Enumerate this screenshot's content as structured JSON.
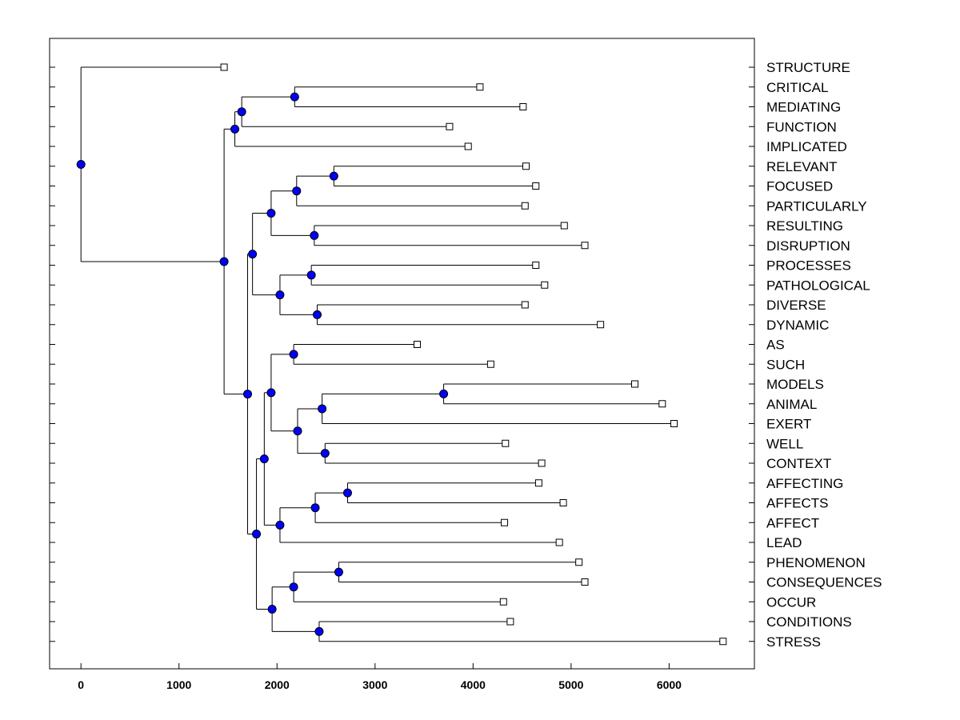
{
  "chart_data": {
    "type": "dendrogram",
    "orientation": "horizontal",
    "xlim": [
      -320,
      6870
    ],
    "xticks": [
      0,
      1000,
      2000,
      3000,
      4000,
      5000,
      6000
    ],
    "xtick_labels": [
      "0",
      "1000",
      "2000",
      "3000",
      "4000",
      "5000",
      "6000"
    ],
    "colors": {
      "merge_node": "#0000ff",
      "leaf_marker": "#ffffff",
      "line": "#000000",
      "frame": "#000000"
    },
    "leaves": [
      {
        "label": "STRUCTURE",
        "value": 1460
      },
      {
        "label": "CRITICAL",
        "value": 4070
      },
      {
        "label": "MEDIATING",
        "value": 4510
      },
      {
        "label": "FUNCTION",
        "value": 3760
      },
      {
        "label": "IMPLICATED",
        "value": 3950
      },
      {
        "label": "RELEVANT",
        "value": 4540
      },
      {
        "label": "FOCUSED",
        "value": 4640
      },
      {
        "label": "PARTICULARLY",
        "value": 4530
      },
      {
        "label": "RESULTING",
        "value": 4930
      },
      {
        "label": "DISRUPTION",
        "value": 5140
      },
      {
        "label": "PROCESSES",
        "value": 4640
      },
      {
        "label": "PATHOLOGICAL",
        "value": 4730
      },
      {
        "label": "DIVERSE",
        "value": 4530
      },
      {
        "label": "DYNAMIC",
        "value": 5300
      },
      {
        "label": "AS",
        "value": 3430
      },
      {
        "label": "SUCH",
        "value": 4180
      },
      {
        "label": "MODELS",
        "value": 5650
      },
      {
        "label": "ANIMAL",
        "value": 5930
      },
      {
        "label": "EXERT",
        "value": 6050
      },
      {
        "label": "WELL",
        "value": 4330
      },
      {
        "label": "CONTEXT",
        "value": 4700
      },
      {
        "label": "AFFECTING",
        "value": 4670
      },
      {
        "label": "AFFECTS",
        "value": 4920
      },
      {
        "label": "AFFECT",
        "value": 4320
      },
      {
        "label": "LEAD",
        "value": 4880
      },
      {
        "label": "PHENOMENON",
        "value": 5080
      },
      {
        "label": "CONSEQUENCES",
        "value": 5140
      },
      {
        "label": "OCCUR",
        "value": 4310
      },
      {
        "label": "CONDITIONS",
        "value": 4380
      },
      {
        "label": "STRESS",
        "value": 6550
      }
    ],
    "merges": [
      {
        "id": "m1",
        "value": 2180,
        "children": [
          "CRITICAL",
          "MEDIATING"
        ]
      },
      {
        "id": "m2",
        "value": 1640,
        "children": [
          "m1",
          "FUNCTION"
        ]
      },
      {
        "id": "m3",
        "value": 1570,
        "children": [
          "m2",
          "IMPLICATED"
        ]
      },
      {
        "id": "m4",
        "value": 2580,
        "children": [
          "RELEVANT",
          "FOCUSED"
        ]
      },
      {
        "id": "m5",
        "value": 2200,
        "children": [
          "m4",
          "PARTICULARLY"
        ]
      },
      {
        "id": "m6",
        "value": 2380,
        "children": [
          "RESULTING",
          "DISRUPTION"
        ]
      },
      {
        "id": "m7",
        "value": 1940,
        "children": [
          "m5",
          "m6"
        ]
      },
      {
        "id": "m8",
        "value": 2350,
        "children": [
          "PROCESSES",
          "PATHOLOGICAL"
        ]
      },
      {
        "id": "m9",
        "value": 2410,
        "children": [
          "DIVERSE",
          "DYNAMIC"
        ]
      },
      {
        "id": "m10",
        "value": 2030,
        "children": [
          "m8",
          "m9"
        ]
      },
      {
        "id": "m11",
        "value": 1750,
        "children": [
          "m7",
          "m10"
        ]
      },
      {
        "id": "m12",
        "value": 2170,
        "children": [
          "AS",
          "SUCH"
        ]
      },
      {
        "id": "m13",
        "value": 3700,
        "children": [
          "MODELS",
          "ANIMAL"
        ]
      },
      {
        "id": "m14",
        "value": 2460,
        "children": [
          "m13",
          "EXERT"
        ]
      },
      {
        "id": "m15",
        "value": 2490,
        "children": [
          "WELL",
          "CONTEXT"
        ]
      },
      {
        "id": "m16",
        "value": 2210,
        "children": [
          "m14",
          "m15"
        ]
      },
      {
        "id": "m17",
        "value": 1940,
        "children": [
          "m12",
          "m16"
        ]
      },
      {
        "id": "m18",
        "value": 2720,
        "children": [
          "AFFECTING",
          "AFFECTS"
        ]
      },
      {
        "id": "m19",
        "value": 2390,
        "children": [
          "m18",
          "AFFECT"
        ]
      },
      {
        "id": "m20",
        "value": 2030,
        "children": [
          "m19",
          "LEAD"
        ]
      },
      {
        "id": "m21",
        "value": 1870,
        "children": [
          "m17",
          "m20"
        ]
      },
      {
        "id": "m22",
        "value": 2630,
        "children": [
          "PHENOMENON",
          "CONSEQUENCES"
        ]
      },
      {
        "id": "m23",
        "value": 2170,
        "children": [
          "m22",
          "OCCUR"
        ]
      },
      {
        "id": "m24",
        "value": 2430,
        "children": [
          "CONDITIONS",
          "STRESS"
        ]
      },
      {
        "id": "m25",
        "value": 1950,
        "children": [
          "m23",
          "m24"
        ]
      },
      {
        "id": "m26",
        "value": 1790,
        "children": [
          "m21",
          "m25"
        ]
      },
      {
        "id": "m27",
        "value": 1700,
        "children": [
          "m11",
          "m26"
        ]
      },
      {
        "id": "m28",
        "value": 1460,
        "children": [
          "m3",
          "m27"
        ]
      },
      {
        "id": "m29",
        "value": 0,
        "children": [
          "STRUCTURE",
          "m28"
        ]
      }
    ]
  }
}
